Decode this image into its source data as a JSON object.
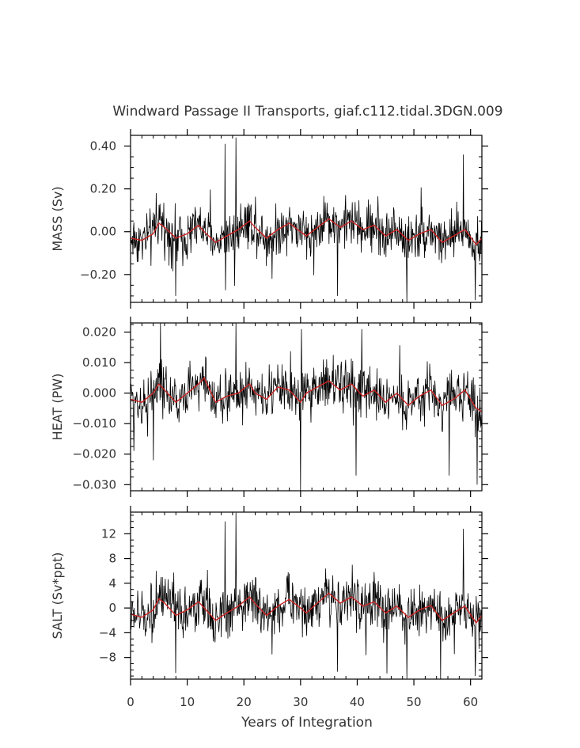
{
  "title": "Windward Passage II Transports, giaf.c112.tidal.3DGN.009",
  "xlabel": "Years of Integration",
  "colors": {
    "raw": "#000000",
    "smooth": "#cc2222",
    "axes": "#000000"
  },
  "chart_data": [
    {
      "type": "line",
      "ylabel": "MASS (Sv)",
      "xlim": [
        0,
        62
      ],
      "ylim": [
        -0.33,
        0.45
      ],
      "x_ticks": [
        0,
        10,
        20,
        30,
        40,
        50,
        60
      ],
      "y_ticks": [
        -0.2,
        0.0,
        0.2,
        0.4
      ],
      "y_tick_labels": [
        "−0.20",
        "0.00",
        "0.20",
        "0.40"
      ],
      "series": [
        {
          "x": [
            0,
            2,
            4,
            5,
            6,
            8,
            10,
            12,
            13,
            15,
            17,
            19,
            21,
            22,
            24,
            26,
            28,
            30,
            31,
            33,
            35,
            37,
            39,
            41,
            43,
            45,
            47,
            49,
            51,
            53,
            55,
            57,
            59,
            61,
            62
          ],
          "values": [
            -0.03,
            -0.04,
            -0.01,
            0.04,
            0.02,
            -0.03,
            -0.01,
            0.03,
            0.0,
            -0.05,
            -0.02,
            0.01,
            0.05,
            0.02,
            -0.03,
            0.01,
            0.04,
            0.0,
            -0.02,
            0.02,
            0.06,
            0.02,
            0.05,
            0.01,
            0.03,
            -0.02,
            0.01,
            -0.04,
            -0.01,
            0.01,
            -0.05,
            -0.02,
            0.01,
            -0.06,
            -0.03
          ]
        }
      ],
      "spikes": [
        {
          "x": 16.7,
          "y": 0.41
        },
        {
          "x": 18.6,
          "y": 0.44
        },
        {
          "x": 58.7,
          "y": 0.36
        },
        {
          "x": 8.0,
          "y": -0.3
        },
        {
          "x": 36.5,
          "y": -0.3
        },
        {
          "x": 48.8,
          "y": -0.33
        },
        {
          "x": 60.8,
          "y": -0.32
        },
        {
          "x": 4.5,
          "y": 0.18
        },
        {
          "x": 25.0,
          "y": -0.22
        }
      ]
    },
    {
      "type": "line",
      "ylabel": "HEAT (PW)",
      "xlim": [
        0,
        62
      ],
      "ylim": [
        -0.032,
        0.023
      ],
      "x_ticks": [
        0,
        10,
        20,
        30,
        40,
        50,
        60
      ],
      "y_ticks": [
        -0.03,
        -0.02,
        -0.01,
        0.0,
        0.01,
        0.02
      ],
      "y_tick_labels": [
        "−0.030",
        "−0.020",
        "−0.010",
        "0.000",
        "0.010",
        "0.020"
      ],
      "series": [
        {
          "x": [
            0,
            2,
            4,
            5,
            6,
            8,
            10,
            12,
            13,
            15,
            17,
            19,
            21,
            22,
            24,
            26,
            28,
            30,
            31,
            33,
            35,
            37,
            39,
            41,
            43,
            45,
            47,
            49,
            51,
            53,
            55,
            57,
            59,
            61,
            62
          ],
          "values": [
            -0.002,
            -0.003,
            0.0,
            0.003,
            0.001,
            -0.003,
            0.0,
            0.003,
            0.005,
            -0.003,
            -0.001,
            0.0,
            0.003,
            0.0,
            -0.002,
            0.002,
            0.001,
            -0.003,
            0.0,
            0.002,
            0.004,
            0.001,
            0.003,
            -0.001,
            0.001,
            -0.003,
            0.0,
            -0.004,
            -0.001,
            0.001,
            -0.004,
            -0.002,
            0.001,
            -0.005,
            -0.006
          ]
        }
      ],
      "spikes": [
        {
          "x": 5.3,
          "y": 0.023
        },
        {
          "x": 18.6,
          "y": 0.023
        },
        {
          "x": 30.0,
          "y": -0.032
        },
        {
          "x": 30.2,
          "y": 0.021
        },
        {
          "x": 40.8,
          "y": 0.021
        },
        {
          "x": 4.0,
          "y": -0.022
        },
        {
          "x": 56.2,
          "y": -0.027
        },
        {
          "x": 61.2,
          "y": -0.03
        },
        {
          "x": 39.8,
          "y": -0.027
        }
      ]
    },
    {
      "type": "line",
      "ylabel": "SALT (Sv*ppt)",
      "xlim": [
        0,
        62
      ],
      "ylim": [
        -11.5,
        15.5
      ],
      "x_ticks": [
        0,
        10,
        20,
        30,
        40,
        50,
        60
      ],
      "y_ticks": [
        -8,
        -4,
        0,
        4,
        8,
        12
      ],
      "y_tick_labels": [
        "−8",
        "−4",
        "0",
        "4",
        "8",
        "12"
      ],
      "x_tick_labels": [
        "0",
        "10",
        "20",
        "30",
        "40",
        "50",
        "60"
      ],
      "series": [
        {
          "x": [
            0,
            2,
            4,
            5,
            6,
            8,
            10,
            12,
            13,
            15,
            17,
            19,
            21,
            22,
            24,
            26,
            28,
            30,
            31,
            33,
            35,
            37,
            39,
            41,
            43,
            45,
            47,
            49,
            51,
            53,
            55,
            57,
            59,
            61,
            62
          ],
          "values": [
            -1.0,
            -1.5,
            -0.3,
            1.5,
            0.8,
            -1.2,
            -0.3,
            1.0,
            0.0,
            -2.0,
            -0.8,
            0.3,
            1.8,
            0.7,
            -1.2,
            0.3,
            1.4,
            0.0,
            -0.8,
            0.8,
            2.4,
            0.8,
            1.8,
            0.3,
            1.0,
            -0.8,
            0.3,
            -1.5,
            -0.3,
            0.4,
            -2.0,
            -0.8,
            0.3,
            -2.4,
            -1.2
          ]
        }
      ],
      "spikes": [
        {
          "x": 16.7,
          "y": 14.0
        },
        {
          "x": 18.6,
          "y": 15.4
        },
        {
          "x": 58.7,
          "y": 12.8
        },
        {
          "x": 8.0,
          "y": -10.5
        },
        {
          "x": 36.5,
          "y": -10.3
        },
        {
          "x": 48.8,
          "y": -11.4
        },
        {
          "x": 60.8,
          "y": -11.0
        },
        {
          "x": 4.5,
          "y": 6.0
        },
        {
          "x": 25.0,
          "y": -7.5
        }
      ]
    }
  ]
}
